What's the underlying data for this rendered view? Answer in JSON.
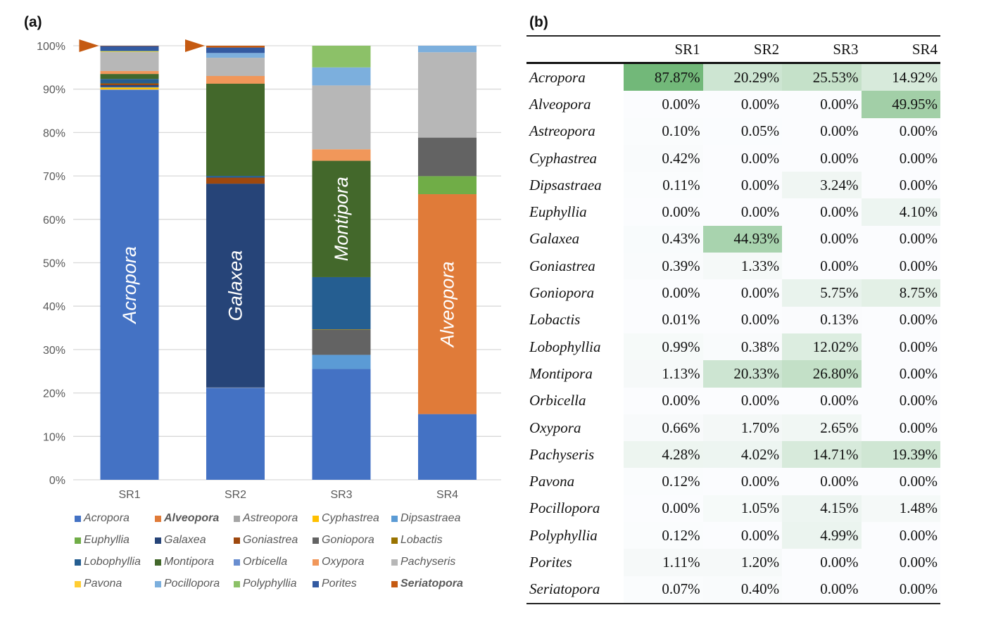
{
  "panel_a_label": "(a)",
  "panel_b_label": "(b)",
  "chart_data": {
    "type": "bar",
    "stacked": true,
    "normalized_percent": true,
    "title": "",
    "xlabel": "",
    "ylabel": "",
    "ylim": [
      0,
      100
    ],
    "yticks": [
      "0%",
      "10%",
      "20%",
      "30%",
      "40%",
      "50%",
      "60%",
      "70%",
      "80%",
      "90%",
      "100%"
    ],
    "grid": true,
    "legend_position": "bottom",
    "categories": [
      "SR1",
      "SR2",
      "SR3",
      "SR4"
    ],
    "bar_labels": [
      "Acropora",
      "Galaxea",
      "Montipora",
      "Alveopora"
    ],
    "markers": [
      {
        "category": "SR1",
        "symbol": "triangle-right",
        "at": 100,
        "color": "#C55A11"
      },
      {
        "category": "SR2",
        "symbol": "triangle-right",
        "at": 100,
        "color": "#C55A11"
      }
    ],
    "series": [
      {
        "name": "Acropora",
        "color": "#4472C4",
        "bold": false,
        "values": [
          87.87,
          20.29,
          25.53,
          14.92
        ]
      },
      {
        "name": "Alveopora",
        "color": "#E07B39",
        "bold": true,
        "values": [
          0.0,
          0.0,
          0.0,
          49.95
        ]
      },
      {
        "name": "Astreopora",
        "color": "#A5A5A5",
        "bold": false,
        "values": [
          0.1,
          0.05,
          0.0,
          0.0
        ]
      },
      {
        "name": "Cyphastrea",
        "color": "#FFC000",
        "bold": false,
        "values": [
          0.42,
          0.0,
          0.0,
          0.0
        ]
      },
      {
        "name": "Dipsastraea",
        "color": "#5B9BD5",
        "bold": false,
        "values": [
          0.11,
          0.0,
          3.24,
          0.0
        ]
      },
      {
        "name": "Euphyllia",
        "color": "#70AD47",
        "bold": false,
        "values": [
          0.0,
          0.0,
          0.0,
          4.1
        ]
      },
      {
        "name": "Galaxea",
        "color": "#264478",
        "bold": false,
        "values": [
          0.43,
          44.93,
          0.0,
          0.0
        ]
      },
      {
        "name": "Goniastrea",
        "color": "#9E480E",
        "bold": false,
        "values": [
          0.39,
          1.33,
          0.0,
          0.0
        ]
      },
      {
        "name": "Goniopora",
        "color": "#636363",
        "bold": false,
        "values": [
          0.0,
          0.0,
          5.75,
          8.75
        ]
      },
      {
        "name": "Lobactis",
        "color": "#997300",
        "bold": false,
        "values": [
          0.01,
          0.0,
          0.13,
          0.0
        ]
      },
      {
        "name": "Lobophyllia",
        "color": "#255E91",
        "bold": false,
        "values": [
          0.99,
          0.38,
          12.02,
          0.0
        ]
      },
      {
        "name": "Montipora",
        "color": "#43682B",
        "bold": false,
        "values": [
          1.13,
          20.33,
          26.8,
          0.0
        ]
      },
      {
        "name": "Orbicella",
        "color": "#698ED0",
        "bold": false,
        "values": [
          0.0,
          0.0,
          0.0,
          0.0
        ]
      },
      {
        "name": "Oxypora",
        "color": "#F1975A",
        "bold": false,
        "values": [
          0.66,
          1.7,
          2.65,
          0.0
        ]
      },
      {
        "name": "Pachyseris",
        "color": "#B7B7B7",
        "bold": false,
        "values": [
          4.28,
          4.02,
          14.71,
          19.39
        ]
      },
      {
        "name": "Pavona",
        "color": "#FFCD33",
        "bold": false,
        "values": [
          0.12,
          0.0,
          0.0,
          0.0
        ]
      },
      {
        "name": "Pocillopora",
        "color": "#7CAFDD",
        "bold": false,
        "values": [
          0.0,
          1.05,
          4.15,
          1.48
        ]
      },
      {
        "name": "Polyphyllia",
        "color": "#8CC168",
        "bold": false,
        "values": [
          0.12,
          0.0,
          4.99,
          0.0
        ]
      },
      {
        "name": "Porites",
        "color": "#335AA1",
        "bold": false,
        "values": [
          1.11,
          1.2,
          0.0,
          0.0
        ]
      },
      {
        "name": "Seriatopora",
        "color": "#C55A11",
        "bold": true,
        "values": [
          0.07,
          0.4,
          0.0,
          0.0
        ]
      }
    ]
  },
  "table": {
    "columns": [
      "",
      "SR1",
      "SR2",
      "SR3",
      "SR4"
    ],
    "heat_color": "#63B06A",
    "rows": [
      {
        "genus": "Acropora",
        "values": [
          "87.87%",
          "20.29%",
          "25.53%",
          "14.92%"
        ]
      },
      {
        "genus": "Alveopora",
        "values": [
          "0.00%",
          "0.00%",
          "0.00%",
          "49.95%"
        ]
      },
      {
        "genus": "Astreopora",
        "values": [
          "0.10%",
          "0.05%",
          "0.00%",
          "0.00%"
        ]
      },
      {
        "genus": "Cyphastrea",
        "values": [
          "0.42%",
          "0.00%",
          "0.00%",
          "0.00%"
        ]
      },
      {
        "genus": "Dipsastraea",
        "values": [
          "0.11%",
          "0.00%",
          "3.24%",
          "0.00%"
        ]
      },
      {
        "genus": "Euphyllia",
        "values": [
          "0.00%",
          "0.00%",
          "0.00%",
          "4.10%"
        ]
      },
      {
        "genus": "Galaxea",
        "values": [
          "0.43%",
          "44.93%",
          "0.00%",
          "0.00%"
        ]
      },
      {
        "genus": "Goniastrea",
        "values": [
          "0.39%",
          "1.33%",
          "0.00%",
          "0.00%"
        ]
      },
      {
        "genus": "Goniopora",
        "values": [
          "0.00%",
          "0.00%",
          "5.75%",
          "8.75%"
        ]
      },
      {
        "genus": "Lobactis",
        "values": [
          "0.01%",
          "0.00%",
          "0.13%",
          "0.00%"
        ]
      },
      {
        "genus": "Lobophyllia",
        "values": [
          "0.99%",
          "0.38%",
          "12.02%",
          "0.00%"
        ]
      },
      {
        "genus": "Montipora",
        "values": [
          "1.13%",
          "20.33%",
          "26.80%",
          "0.00%"
        ]
      },
      {
        "genus": "Orbicella",
        "values": [
          "0.00%",
          "0.00%",
          "0.00%",
          "0.00%"
        ]
      },
      {
        "genus": "Oxypora",
        "values": [
          "0.66%",
          "1.70%",
          "2.65%",
          "0.00%"
        ]
      },
      {
        "genus": "Pachyseris",
        "values": [
          "4.28%",
          "4.02%",
          "14.71%",
          "19.39%"
        ]
      },
      {
        "genus": "Pavona",
        "values": [
          "0.12%",
          "0.00%",
          "0.00%",
          "0.00%"
        ]
      },
      {
        "genus": "Pocillopora",
        "values": [
          "0.00%",
          "1.05%",
          "4.15%",
          "1.48%"
        ]
      },
      {
        "genus": "Polyphyllia",
        "values": [
          "0.12%",
          "0.00%",
          "4.99%",
          "0.00%"
        ]
      },
      {
        "genus": "Porites",
        "values": [
          "1.11%",
          "1.20%",
          "0.00%",
          "0.00%"
        ]
      },
      {
        "genus": "Seriatopora",
        "values": [
          "0.07%",
          "0.40%",
          "0.00%",
          "0.00%"
        ]
      }
    ]
  }
}
